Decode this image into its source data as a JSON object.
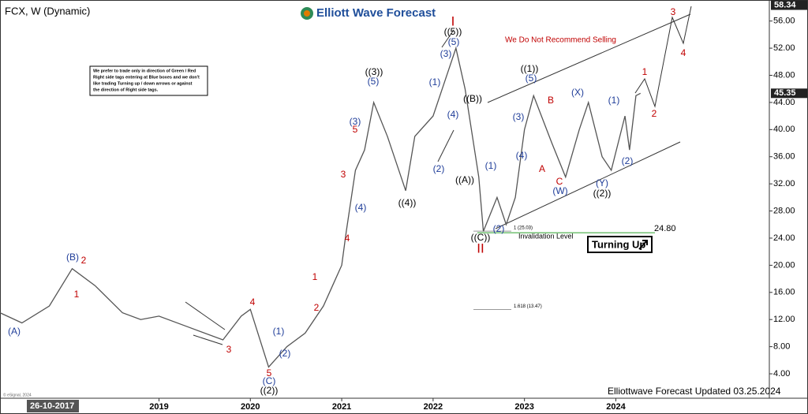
{
  "chart_data": {
    "type": "line",
    "title": "FCX, W (Dynamic)",
    "brand": "Elliott Wave Forecast",
    "footer": "Elliottwave Forecast Updated 03.25.2024",
    "cursor_date": "26-10-2017",
    "copyright": "© eSignal, 2024",
    "warning": "We Do Not Recommend Selling",
    "note": [
      "We prefer to trade only in direction of Green / Red",
      "Right side tags entering at Blue boxes and we don't",
      "like trading Turning up / down arrows or against",
      "the direction of Right side tags."
    ],
    "signal": "Turning Up",
    "invalidation": {
      "label": "Invalidation Level",
      "value": 24.8,
      "value_label": "24.80",
      "color": "#2ca02c"
    },
    "fib_levels": [
      {
        "value": 25.03,
        "label": "1 (25.03)"
      },
      {
        "value": 13.47,
        "label": "1.618 (13.47)"
      }
    ],
    "price_markers": [
      58.34,
      45.35
    ],
    "x": [
      2017.26,
      2017.5,
      2017.8,
      2018.05,
      2018.3,
      2018.6,
      2018.8,
      2019.0,
      2019.3,
      2019.7,
      2019.9,
      2020.0,
      2020.2,
      2020.4,
      2020.6,
      2020.8,
      2020.9,
      2021.0,
      2021.05,
      2021.15,
      2021.25,
      2021.35,
      2021.5,
      2021.7,
      2021.8,
      2022.0,
      2022.1,
      2022.25,
      2022.35,
      2022.5,
      2022.55,
      2022.7,
      2022.8,
      2022.9,
      2023.0,
      2023.1,
      2023.3,
      2023.45,
      2023.6,
      2023.7,
      2023.85,
      2023.95,
      2024.1,
      2024.15,
      2024.22,
      2024.27
    ],
    "series": [
      {
        "name": "FCX",
        "color": "#555555",
        "values": [
          13,
          11.5,
          14,
          19.5,
          17,
          13,
          12,
          12.5,
          11,
          9,
          12.5,
          13.5,
          5,
          8,
          10,
          14,
          17,
          20,
          25,
          34,
          37,
          44,
          39,
          31,
          39,
          42,
          46,
          52,
          46,
          33,
          25,
          30,
          26,
          30,
          40,
          45,
          38,
          33,
          40,
          44,
          36,
          34,
          42,
          37,
          45,
          45.35
        ]
      }
    ],
    "xlim": [
      2017.26,
      2025.68
    ],
    "xticks": [
      2019,
      2020,
      2021,
      2022,
      2023,
      2024
    ],
    "ylim": [
      0.4,
      59.1
    ],
    "yticks": [
      {
        "value": 4,
        "label": "4.00"
      },
      {
        "value": 8,
        "label": "8.00"
      },
      {
        "value": 12,
        "label": "12.00"
      },
      {
        "value": 16,
        "label": "16.00"
      },
      {
        "value": 20,
        "label": "20.00"
      },
      {
        "value": 24,
        "label": "24.00"
      },
      {
        "value": 28,
        "label": "28.00"
      },
      {
        "value": 32,
        "label": "32.00"
      },
      {
        "value": 36,
        "label": "36.00"
      },
      {
        "value": 40,
        "label": "40.00"
      },
      {
        "value": 44,
        "label": "44.00"
      },
      {
        "value": 48,
        "label": "48.00"
      },
      {
        "value": 52,
        "label": "52.00"
      },
      {
        "value": 56,
        "label": "56.00"
      }
    ],
    "annotations": [
      {
        "text": "(A)",
        "color": "#1f3d99"
      },
      {
        "text": "1",
        "color": "#c00000"
      },
      {
        "text": "(B)",
        "color": "#1f3d99"
      },
      {
        "text": "2",
        "color": "#c00000"
      },
      {
        "text": "3",
        "color": "#c00000"
      },
      {
        "text": "4",
        "color": "#c00000"
      },
      {
        "text": "5",
        "color": "#c00000"
      },
      {
        "text": "(C)",
        "color": "#1f3d99"
      },
      {
        "text": "((2))",
        "color": "#000000"
      },
      {
        "text": "(1)",
        "color": "#1f3d99"
      },
      {
        "text": "(2)",
        "color": "#1f3d99"
      },
      {
        "text": "1",
        "color": "#c00000"
      },
      {
        "text": "2",
        "color": "#c00000"
      },
      {
        "text": "3",
        "color": "#c00000"
      },
      {
        "text": "4",
        "color": "#c00000"
      },
      {
        "text": "(4)",
        "color": "#1f3d99"
      },
      {
        "text": "5",
        "color": "#c00000"
      },
      {
        "text": "(3)",
        "color": "#1f3d99"
      },
      {
        "text": "(5)",
        "color": "#1f3d99"
      },
      {
        "text": "((3))",
        "color": "#000000"
      },
      {
        "text": "((4))",
        "color": "#000000"
      },
      {
        "text": "(1)",
        "color": "#1f3d99"
      },
      {
        "text": "(2)",
        "color": "#1f3d99"
      },
      {
        "text": "(3)",
        "color": "#1f3d99"
      },
      {
        "text": "(4)",
        "color": "#1f3d99"
      },
      {
        "text": "(5)",
        "color": "#1f3d99"
      },
      {
        "text": "((5))",
        "color": "#000000"
      },
      {
        "text": "I",
        "color": "#c00000"
      },
      {
        "text": "((B))",
        "color": "#000000"
      },
      {
        "text": "((A))",
        "color": "#000000"
      },
      {
        "text": "(1)",
        "color": "#1f3d99"
      },
      {
        "text": "(2)",
        "color": "#1f3d99"
      },
      {
        "text": "((C))",
        "color": "#000000"
      },
      {
        "text": "II",
        "color": "#c00000"
      },
      {
        "text": "(3)",
        "color": "#1f3d99"
      },
      {
        "text": "(4)",
        "color": "#1f3d99"
      },
      {
        "text": "((1))",
        "color": "#000000"
      },
      {
        "text": "(5)",
        "color": "#1f3d99"
      },
      {
        "text": "A",
        "color": "#c00000"
      },
      {
        "text": "B",
        "color": "#c00000"
      },
      {
        "text": "C",
        "color": "#c00000"
      },
      {
        "text": "(W)",
        "color": "#1f3d99"
      },
      {
        "text": "(X)",
        "color": "#1f3d99"
      },
      {
        "text": "(Y)",
        "color": "#1f3d99"
      },
      {
        "text": "((2))",
        "color": "#000000"
      },
      {
        "text": "(1)",
        "color": "#1f3d99"
      },
      {
        "text": "(2)",
        "color": "#1f3d99"
      },
      {
        "text": "1",
        "color": "#c00000"
      },
      {
        "text": "2",
        "color": "#c00000"
      },
      {
        "text": "3",
        "color": "#c00000"
      },
      {
        "text": "4",
        "color": "#c00000"
      }
    ]
  }
}
